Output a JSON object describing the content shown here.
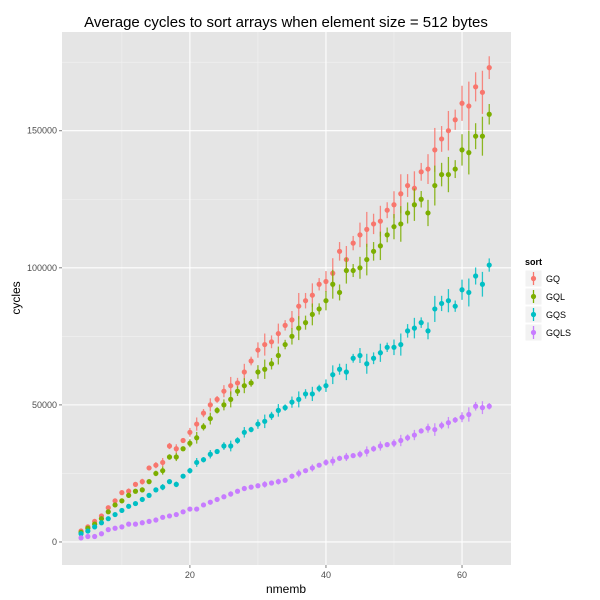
{
  "chart_data": {
    "type": "scatter",
    "title": "Average cycles to sort arrays when element size = 512 bytes",
    "xlabel": "nmemb",
    "ylabel": "cycles",
    "xlim": [
      1.2,
      67.2
    ],
    "ylim": [
      -8400,
      186000
    ],
    "xticks": [
      20,
      40,
      60
    ],
    "xtick_labels": [
      "20",
      "40",
      "60"
    ],
    "yticks": [
      0,
      50000,
      100000,
      150000
    ],
    "ytick_labels": [
      "0",
      "50000",
      "100000",
      "150000"
    ],
    "grid": true,
    "legend": {
      "title": "sort",
      "placement": "right"
    },
    "error_bar_pct": 4,
    "x_start": 4,
    "series": [
      {
        "name": "GQ",
        "color": "#F8766D",
        "values": [
          4000,
          5500,
          7500,
          9500,
          12500,
          15000,
          18000,
          18500,
          21000,
          22000,
          27000,
          28000,
          29000,
          35000,
          34000,
          37000,
          40000,
          43000,
          47000,
          50000,
          52000,
          55000,
          57000,
          58000,
          62000,
          66000,
          70000,
          72000,
          73000,
          76000,
          79000,
          81000,
          86000,
          88000,
          90000,
          94000,
          95000,
          98000,
          106000,
          103000,
          109000,
          112000,
          114000,
          116000,
          117000,
          121000,
          123000,
          127000,
          130000,
          129000,
          135000,
          136000,
          143000,
          147000,
          150000,
          154000,
          160000,
          159000,
          166000,
          164000,
          173000
        ]
      },
      {
        "name": "GQL",
        "color": "#7CAE00",
        "values": [
          3500,
          5000,
          6500,
          8500,
          11000,
          13500,
          15000,
          17000,
          18500,
          19000,
          22000,
          25000,
          26000,
          31000,
          31000,
          34000,
          36000,
          38000,
          42000,
          45000,
          48000,
          50000,
          52000,
          55000,
          57000,
          58000,
          62000,
          63000,
          65000,
          68000,
          72000,
          75000,
          78000,
          80000,
          83000,
          85000,
          88000,
          94000,
          91000,
          99000,
          99000,
          100000,
          103000,
          106000,
          108000,
          112000,
          115000,
          116000,
          120000,
          123000,
          125000,
          120000,
          130000,
          134000,
          134000,
          136000,
          143000,
          142000,
          148000,
          148000,
          156000
        ]
      },
      {
        "name": "GQS",
        "color": "#00BFC4",
        "values": [
          3000,
          4000,
          5500,
          7000,
          8500,
          10000,
          11500,
          13000,
          14000,
          15500,
          17000,
          19000,
          20000,
          22000,
          21000,
          24000,
          26000,
          29000,
          30000,
          32000,
          33000,
          35000,
          35000,
          37000,
          40000,
          41000,
          43000,
          44000,
          46000,
          48000,
          49000,
          51000,
          52000,
          54000,
          54000,
          56000,
          57000,
          61000,
          63000,
          62000,
          67000,
          68000,
          65000,
          67000,
          69000,
          71000,
          71000,
          72000,
          77000,
          78000,
          80000,
          77000,
          85000,
          87000,
          88000,
          86000,
          92000,
          91000,
          97000,
          94000,
          101000
        ]
      },
      {
        "name": "GQLS",
        "color": "#C77CFF",
        "values": [
          1500,
          2000,
          2000,
          3000,
          4500,
          5000,
          5500,
          6500,
          6500,
          7000,
          7500,
          8000,
          9000,
          9500,
          10000,
          11000,
          12000,
          12000,
          13500,
          14500,
          15500,
          16500,
          17500,
          18500,
          19500,
          20000,
          20500,
          21000,
          21500,
          22000,
          22500,
          24000,
          25000,
          26000,
          27000,
          28000,
          29000,
          29500,
          30500,
          31000,
          31500,
          32000,
          33000,
          34000,
          35000,
          35500,
          36000,
          37000,
          38000,
          39000,
          40500,
          41500,
          41000,
          42500,
          43500,
          44500,
          45500,
          46500,
          49500,
          49000,
          49500
        ]
      }
    ]
  }
}
